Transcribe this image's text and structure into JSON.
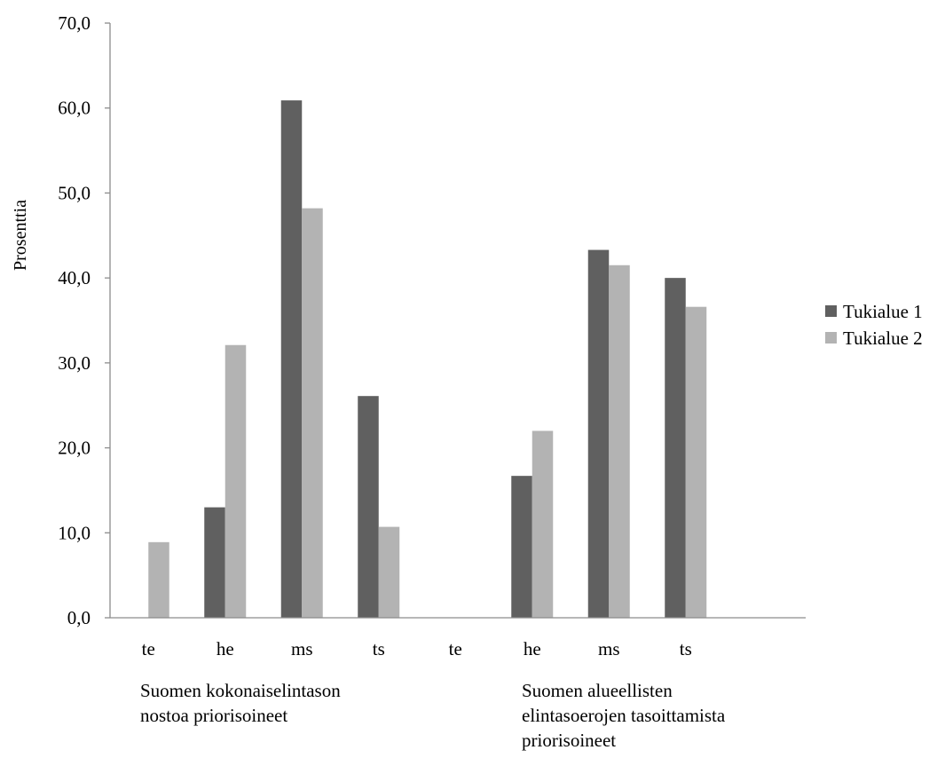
{
  "chart_data": {
    "type": "bar",
    "title": "",
    "xlabel": "",
    "ylabel": "Prosenttia",
    "ylim": [
      0,
      70
    ],
    "ytick_step": 10,
    "ytick_labels": [
      "0,0",
      "10,0",
      "20,0",
      "30,0",
      "40,0",
      "50,0",
      "60,0",
      "70,0"
    ],
    "grid": false,
    "legend_position": "right",
    "groups": [
      {
        "label_lines": [
          "Suomen kokonaiselintason",
          "nostoa priorisoineet"
        ],
        "categories": [
          "te",
          "he",
          "ms",
          "ts"
        ]
      },
      {
        "label_lines": [
          "Suomen alueellisten",
          "elintasoerojen tasoittamista",
          "priorisoineet"
        ],
        "categories": [
          "te",
          "he",
          "ms",
          "ts"
        ]
      }
    ],
    "series": [
      {
        "name": "Tukialue 1",
        "color": "#606060",
        "values": [
          0.0,
          13.0,
          60.9,
          26.1,
          0.0,
          16.7,
          43.3,
          40.0
        ]
      },
      {
        "name": "Tukialue 2",
        "color": "#b3b3b3",
        "values": [
          8.9,
          32.1,
          48.2,
          10.7,
          0.0,
          22.0,
          41.5,
          36.6
        ]
      }
    ]
  }
}
